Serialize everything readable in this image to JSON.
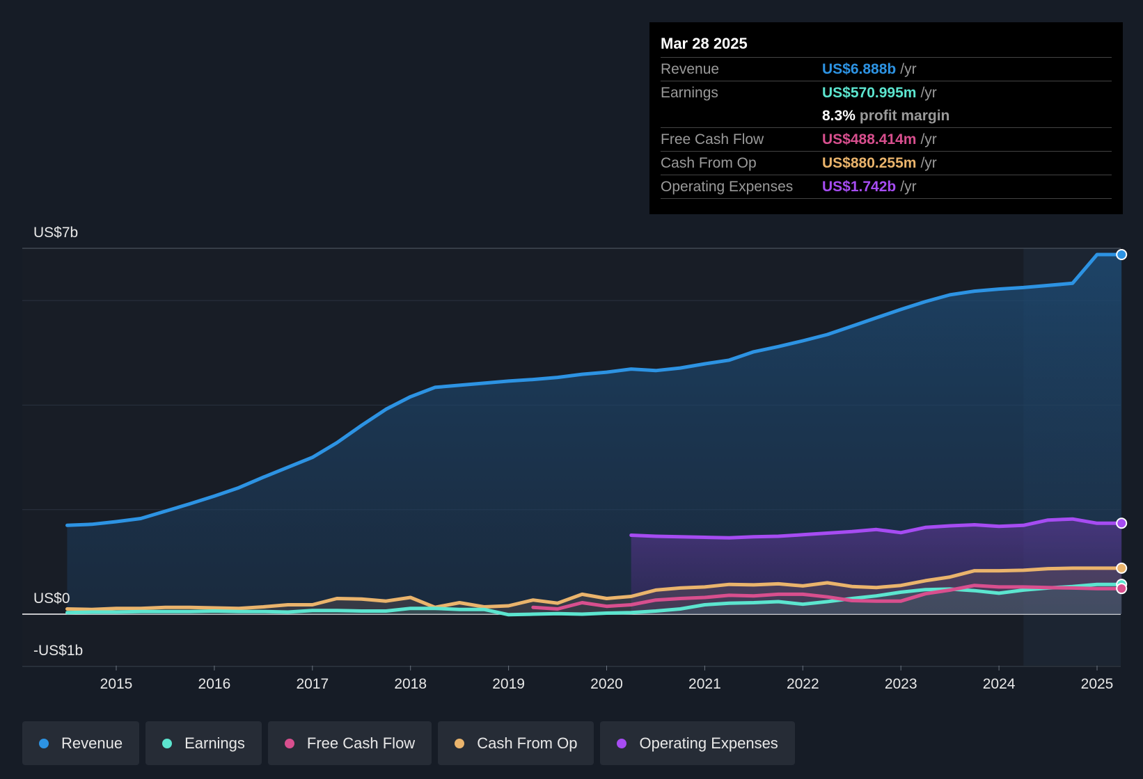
{
  "tooltip": {
    "date": "Mar 28 2025",
    "rows": [
      {
        "label": "Revenue",
        "value": "US$6.888b",
        "unit": "/yr",
        "color": "#2d93e3"
      },
      {
        "label": "Earnings",
        "value": "US$570.995m",
        "unit": "/yr",
        "color": "#5ce5cf"
      },
      {
        "label": "",
        "value": "8.3%",
        "unit": "profit margin",
        "color": "#ffffff"
      },
      {
        "label": "Free Cash Flow",
        "value": "US$488.414m",
        "unit": "/yr",
        "color": "#d84f8e"
      },
      {
        "label": "Cash From Op",
        "value": "US$880.255m",
        "unit": "/yr",
        "color": "#eab46c"
      },
      {
        "label": "Operating Expenses",
        "value": "US$1.742b",
        "unit": "/yr",
        "color": "#a64cf2"
      }
    ]
  },
  "legend": [
    {
      "label": "Revenue",
      "color": "#2d93e3"
    },
    {
      "label": "Earnings",
      "color": "#5ce5cf"
    },
    {
      "label": "Free Cash Flow",
      "color": "#d84f8e"
    },
    {
      "label": "Cash From Op",
      "color": "#eab46c"
    },
    {
      "label": "Operating Expenses",
      "color": "#a64cf2"
    }
  ],
  "chart_data": {
    "type": "area",
    "y_tick_labels": [
      {
        "value": 7,
        "label": "US$7b"
      },
      {
        "value": 0,
        "label": "US$0"
      },
      {
        "value": -1,
        "label": "-US$1b"
      }
    ],
    "ylim": [
      -1,
      7
    ],
    "xlim": [
      2014.0,
      2025.25
    ],
    "x_tick_labels": [
      "2015",
      "2016",
      "2017",
      "2018",
      "2019",
      "2020",
      "2021",
      "2022",
      "2023",
      "2024",
      "2025"
    ],
    "x_tick_values": [
      2015,
      2016,
      2017,
      2018,
      2019,
      2020,
      2021,
      2022,
      2023,
      2024,
      2025
    ],
    "highlight_start": 2024.25,
    "series": [
      {
        "name": "Revenue",
        "color": "#2d93e3",
        "points": [
          [
            2014.5,
            1.7
          ],
          [
            2014.75,
            1.72
          ],
          [
            2015.0,
            1.77
          ],
          [
            2015.25,
            1.83
          ],
          [
            2015.5,
            1.97
          ],
          [
            2015.75,
            2.11
          ],
          [
            2016.0,
            2.26
          ],
          [
            2016.25,
            2.42
          ],
          [
            2016.5,
            2.62
          ],
          [
            2016.75,
            2.81
          ],
          [
            2017.0,
            3.0
          ],
          [
            2017.25,
            3.28
          ],
          [
            2017.5,
            3.61
          ],
          [
            2017.75,
            3.92
          ],
          [
            2018.0,
            4.16
          ],
          [
            2018.25,
            4.34
          ],
          [
            2018.5,
            4.38
          ],
          [
            2018.75,
            4.42
          ],
          [
            2019.0,
            4.46
          ],
          [
            2019.25,
            4.49
          ],
          [
            2019.5,
            4.53
          ],
          [
            2019.75,
            4.59
          ],
          [
            2020.0,
            4.63
          ],
          [
            2020.25,
            4.69
          ],
          [
            2020.5,
            4.66
          ],
          [
            2020.75,
            4.71
          ],
          [
            2021.0,
            4.79
          ],
          [
            2021.25,
            4.86
          ],
          [
            2021.5,
            5.02
          ],
          [
            2021.75,
            5.12
          ],
          [
            2022.0,
            5.23
          ],
          [
            2022.25,
            5.35
          ],
          [
            2022.5,
            5.51
          ],
          [
            2022.75,
            5.67
          ],
          [
            2023.0,
            5.83
          ],
          [
            2023.25,
            5.98
          ],
          [
            2023.5,
            6.11
          ],
          [
            2023.75,
            6.18
          ],
          [
            2024.0,
            6.22
          ],
          [
            2024.25,
            6.25
          ],
          [
            2024.5,
            6.29
          ],
          [
            2024.75,
            6.33
          ],
          [
            2025.0,
            6.88
          ],
          [
            2025.25,
            6.88
          ]
        ]
      },
      {
        "name": "Operating Expenses",
        "color": "#a64cf2",
        "points": [
          [
            2020.25,
            1.51
          ],
          [
            2020.5,
            1.49
          ],
          [
            2020.75,
            1.48
          ],
          [
            2021.0,
            1.47
          ],
          [
            2021.25,
            1.46
          ],
          [
            2021.5,
            1.48
          ],
          [
            2021.75,
            1.49
          ],
          [
            2022.0,
            1.52
          ],
          [
            2022.25,
            1.55
          ],
          [
            2022.5,
            1.58
          ],
          [
            2022.75,
            1.62
          ],
          [
            2023.0,
            1.56
          ],
          [
            2023.25,
            1.66
          ],
          [
            2023.5,
            1.69
          ],
          [
            2023.75,
            1.71
          ],
          [
            2024.0,
            1.68
          ],
          [
            2024.25,
            1.7
          ],
          [
            2024.5,
            1.8
          ],
          [
            2024.75,
            1.82
          ],
          [
            2025.0,
            1.74
          ],
          [
            2025.25,
            1.74
          ]
        ]
      },
      {
        "name": "Cash From Op",
        "color": "#eab46c",
        "points": [
          [
            2014.5,
            0.1
          ],
          [
            2014.75,
            0.09
          ],
          [
            2015.0,
            0.11
          ],
          [
            2015.25,
            0.11
          ],
          [
            2015.5,
            0.13
          ],
          [
            2015.75,
            0.13
          ],
          [
            2016.0,
            0.12
          ],
          [
            2016.25,
            0.11
          ],
          [
            2016.5,
            0.14
          ],
          [
            2016.75,
            0.18
          ],
          [
            2017.0,
            0.18
          ],
          [
            2017.25,
            0.3
          ],
          [
            2017.5,
            0.29
          ],
          [
            2017.75,
            0.25
          ],
          [
            2018.0,
            0.32
          ],
          [
            2018.25,
            0.13
          ],
          [
            2018.5,
            0.22
          ],
          [
            2018.75,
            0.14
          ],
          [
            2019.0,
            0.16
          ],
          [
            2019.25,
            0.27
          ],
          [
            2019.5,
            0.21
          ],
          [
            2019.75,
            0.38
          ],
          [
            2020.0,
            0.3
          ],
          [
            2020.25,
            0.34
          ],
          [
            2020.5,
            0.46
          ],
          [
            2020.75,
            0.5
          ],
          [
            2021.0,
            0.52
          ],
          [
            2021.25,
            0.57
          ],
          [
            2021.5,
            0.56
          ],
          [
            2021.75,
            0.58
          ],
          [
            2022.0,
            0.54
          ],
          [
            2022.25,
            0.6
          ],
          [
            2022.5,
            0.53
          ],
          [
            2022.75,
            0.51
          ],
          [
            2023.0,
            0.55
          ],
          [
            2023.25,
            0.64
          ],
          [
            2023.5,
            0.71
          ],
          [
            2023.75,
            0.83
          ],
          [
            2024.0,
            0.83
          ],
          [
            2024.25,
            0.84
          ],
          [
            2024.5,
            0.87
          ],
          [
            2024.75,
            0.88
          ],
          [
            2025.0,
            0.88
          ],
          [
            2025.25,
            0.88
          ]
        ]
      },
      {
        "name": "Earnings",
        "color": "#5ce5cf",
        "points": [
          [
            2014.5,
            0.03
          ],
          [
            2014.75,
            0.04
          ],
          [
            2015.0,
            0.04
          ],
          [
            2015.25,
            0.05
          ],
          [
            2015.5,
            0.05
          ],
          [
            2015.75,
            0.05
          ],
          [
            2016.0,
            0.06
          ],
          [
            2016.25,
            0.05
          ],
          [
            2016.5,
            0.05
          ],
          [
            2016.75,
            0.04
          ],
          [
            2017.0,
            0.07
          ],
          [
            2017.25,
            0.07
          ],
          [
            2017.5,
            0.06
          ],
          [
            2017.75,
            0.06
          ],
          [
            2018.0,
            0.11
          ],
          [
            2018.25,
            0.11
          ],
          [
            2018.5,
            0.09
          ],
          [
            2018.75,
            0.09
          ],
          [
            2019.0,
            -0.01
          ],
          [
            2019.25,
            0.0
          ],
          [
            2019.5,
            0.01
          ],
          [
            2019.75,
            0.0
          ],
          [
            2020.0,
            0.02
          ],
          [
            2020.25,
            0.03
          ],
          [
            2020.5,
            0.06
          ],
          [
            2020.75,
            0.1
          ],
          [
            2021.0,
            0.18
          ],
          [
            2021.25,
            0.21
          ],
          [
            2021.5,
            0.22
          ],
          [
            2021.75,
            0.24
          ],
          [
            2022.0,
            0.19
          ],
          [
            2022.25,
            0.24
          ],
          [
            2022.5,
            0.3
          ],
          [
            2022.75,
            0.35
          ],
          [
            2023.0,
            0.42
          ],
          [
            2023.25,
            0.47
          ],
          [
            2023.5,
            0.48
          ],
          [
            2023.75,
            0.45
          ],
          [
            2024.0,
            0.4
          ],
          [
            2024.25,
            0.46
          ],
          [
            2024.5,
            0.5
          ],
          [
            2024.75,
            0.53
          ],
          [
            2025.0,
            0.57
          ],
          [
            2025.25,
            0.57
          ]
        ]
      },
      {
        "name": "Free Cash Flow",
        "color": "#d84f8e",
        "points": [
          [
            2019.25,
            0.13
          ],
          [
            2019.5,
            0.1
          ],
          [
            2019.75,
            0.22
          ],
          [
            2020.0,
            0.15
          ],
          [
            2020.25,
            0.18
          ],
          [
            2020.5,
            0.27
          ],
          [
            2020.75,
            0.3
          ],
          [
            2021.0,
            0.32
          ],
          [
            2021.25,
            0.36
          ],
          [
            2021.5,
            0.35
          ],
          [
            2021.75,
            0.38
          ],
          [
            2022.0,
            0.38
          ],
          [
            2022.25,
            0.33
          ],
          [
            2022.5,
            0.26
          ],
          [
            2022.75,
            0.25
          ],
          [
            2023.0,
            0.25
          ],
          [
            2023.25,
            0.39
          ],
          [
            2023.5,
            0.46
          ],
          [
            2023.75,
            0.55
          ],
          [
            2024.0,
            0.52
          ],
          [
            2024.25,
            0.52
          ],
          [
            2024.5,
            0.51
          ],
          [
            2024.75,
            0.5
          ],
          [
            2025.0,
            0.49
          ],
          [
            2025.25,
            0.49
          ]
        ]
      }
    ]
  }
}
